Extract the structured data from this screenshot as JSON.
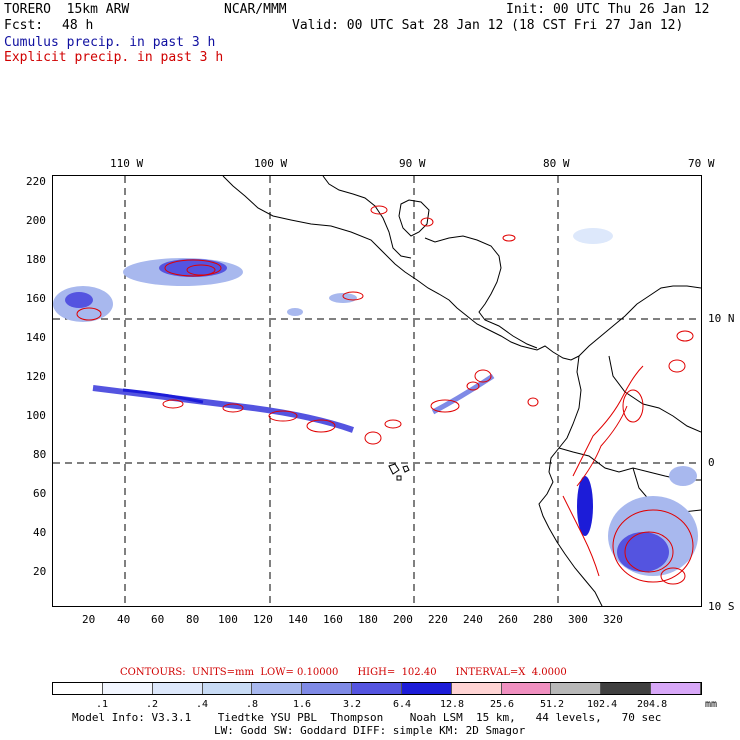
{
  "header": {
    "model": "TORERO  15km ARW",
    "org": "NCAR/MMM",
    "init": "Init: 00 UTC Thu 26 Jan 12",
    "fcst_label": "Fcst:",
    "fcst_hours": "48 h",
    "valid": "Valid: 00 UTC Sat 28 Jan 12 (18 CST Fri 27 Jan 12)",
    "legend_cumulus": "Cumulus precip. in past 3 h",
    "legend_explicit": "Explicit precip. in past 3 h"
  },
  "map": {
    "lon_labels": [
      "110 W",
      "100 W",
      "90 W",
      "80 W",
      "70 W"
    ],
    "lat_labels": [
      "10 N",
      "0",
      "10 S"
    ],
    "y_ticks": [
      "220",
      "200",
      "180",
      "160",
      "140",
      "120",
      "100",
      "80",
      "60",
      "40",
      "20"
    ],
    "x_ticks": [
      "20",
      "40",
      "60",
      "80",
      "100",
      "120",
      "140",
      "160",
      "180",
      "200",
      "220",
      "240",
      "260",
      "280",
      "300",
      "320"
    ]
  },
  "contours": {
    "text": "CONTOURS:  UNITS=mm  LOW= 0.10000      HIGH=  102.40      INTERVAL=X  4.0000"
  },
  "colorbar": {
    "labels": [
      ".1",
      ".2",
      ".4",
      ".8",
      "1.6",
      "3.2",
      "6.4",
      "12.8",
      "25.6",
      "51.2",
      "102.4",
      "204.8"
    ],
    "units": "mm",
    "colors": [
      "#ffffff",
      "#f2f6ff",
      "#dde8fb",
      "#c8dbf5",
      "#a8b8ee",
      "#7f8ae6",
      "#5454e0",
      "#1c1cd8",
      "#ffd4d4",
      "#f090c0",
      "#b8b8b8",
      "#404040",
      "#d8a8f8"
    ]
  },
  "footer": {
    "line1": "Model Info: V3.3.1    Tiedtke YSU PBL  Thompson    Noah LSM  15 km,   44 levels,   70 sec",
    "line2": "LW: Godd SW: Goddard DIFF: simple KM: 2D Smagor"
  }
}
